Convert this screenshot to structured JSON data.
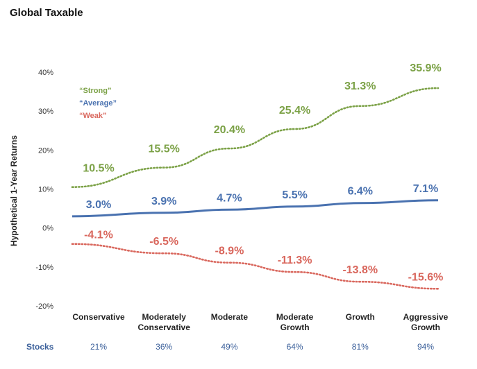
{
  "title": "Global Taxable",
  "chart_data": {
    "type": "line",
    "ylabel": "Hypothetical 1-Year Returns",
    "ylim": [
      -20,
      40
    ],
    "yticks": [
      "40%",
      "30%",
      "20%",
      "10%",
      "0%",
      "-10%",
      "-20%"
    ],
    "ytick_values": [
      40,
      30,
      20,
      10,
      0,
      -10,
      -20
    ],
    "categories": [
      [
        "Conservative"
      ],
      [
        "Moderately",
        "Conservative"
      ],
      [
        "Moderate"
      ],
      [
        "Moderate",
        "Growth"
      ],
      [
        "Growth"
      ],
      [
        "Aggressive",
        "Growth"
      ]
    ],
    "series": [
      {
        "name": "“Strong”",
        "color": "#7ba146",
        "style": "dotted",
        "values": [
          10.5,
          15.5,
          20.4,
          25.4,
          31.3,
          35.9
        ],
        "labels": [
          "10.5%",
          "15.5%",
          "20.4%",
          "25.4%",
          "31.3%",
          "35.9%"
        ]
      },
      {
        "name": "“Average”",
        "color": "#4a72b0",
        "style": "solid",
        "values": [
          3.0,
          3.9,
          4.7,
          5.5,
          6.4,
          7.1
        ],
        "labels": [
          "3.0%",
          "3.9%",
          "4.7%",
          "5.5%",
          "6.4%",
          "7.1%"
        ]
      },
      {
        "name": "“Weak”",
        "color": "#d9675d",
        "style": "dotted",
        "values": [
          -4.1,
          -6.5,
          -8.9,
          -11.3,
          -13.8,
          -15.6
        ],
        "labels": [
          "-4.1%",
          "-6.5%",
          "-8.9%",
          "-11.3%",
          "-13.8%",
          "-15.6%"
        ]
      }
    ],
    "legend_position": "top-left",
    "grid": false,
    "stocks": {
      "label": "Stocks",
      "values": [
        "21%",
        "36%",
        "49%",
        "64%",
        "81%",
        "94%"
      ]
    }
  }
}
